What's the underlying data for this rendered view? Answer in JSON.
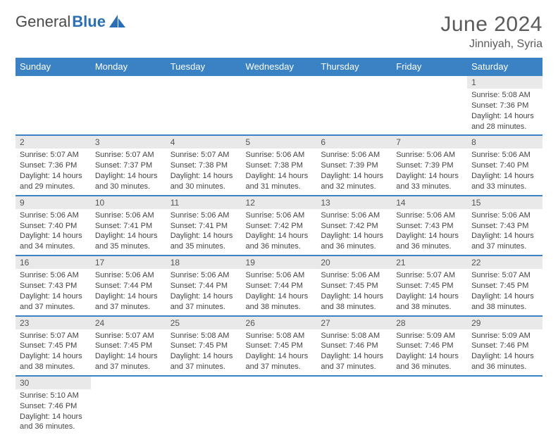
{
  "logo": {
    "text1": "General",
    "text2": "Blue"
  },
  "title": "June 2024",
  "location": "Jinniyah, Syria",
  "colors": {
    "header_bg": "#3b82c4",
    "header_text": "#ffffff",
    "daynum_bg": "#e9e9e9",
    "grid_line": "#3b82c4",
    "body_text": "#444444",
    "title_text": "#5a5a5a"
  },
  "weekdays": [
    "Sunday",
    "Monday",
    "Tuesday",
    "Wednesday",
    "Thursday",
    "Friday",
    "Saturday"
  ],
  "weeks": [
    [
      null,
      null,
      null,
      null,
      null,
      null,
      {
        "d": "1",
        "sr": "Sunrise: 5:08 AM",
        "ss": "Sunset: 7:36 PM",
        "dl": "Daylight: 14 hours and 28 minutes."
      }
    ],
    [
      {
        "d": "2",
        "sr": "Sunrise: 5:07 AM",
        "ss": "Sunset: 7:36 PM",
        "dl": "Daylight: 14 hours and 29 minutes."
      },
      {
        "d": "3",
        "sr": "Sunrise: 5:07 AM",
        "ss": "Sunset: 7:37 PM",
        "dl": "Daylight: 14 hours and 30 minutes."
      },
      {
        "d": "4",
        "sr": "Sunrise: 5:07 AM",
        "ss": "Sunset: 7:38 PM",
        "dl": "Daylight: 14 hours and 30 minutes."
      },
      {
        "d": "5",
        "sr": "Sunrise: 5:06 AM",
        "ss": "Sunset: 7:38 PM",
        "dl": "Daylight: 14 hours and 31 minutes."
      },
      {
        "d": "6",
        "sr": "Sunrise: 5:06 AM",
        "ss": "Sunset: 7:39 PM",
        "dl": "Daylight: 14 hours and 32 minutes."
      },
      {
        "d": "7",
        "sr": "Sunrise: 5:06 AM",
        "ss": "Sunset: 7:39 PM",
        "dl": "Daylight: 14 hours and 33 minutes."
      },
      {
        "d": "8",
        "sr": "Sunrise: 5:06 AM",
        "ss": "Sunset: 7:40 PM",
        "dl": "Daylight: 14 hours and 33 minutes."
      }
    ],
    [
      {
        "d": "9",
        "sr": "Sunrise: 5:06 AM",
        "ss": "Sunset: 7:40 PM",
        "dl": "Daylight: 14 hours and 34 minutes."
      },
      {
        "d": "10",
        "sr": "Sunrise: 5:06 AM",
        "ss": "Sunset: 7:41 PM",
        "dl": "Daylight: 14 hours and 35 minutes."
      },
      {
        "d": "11",
        "sr": "Sunrise: 5:06 AM",
        "ss": "Sunset: 7:41 PM",
        "dl": "Daylight: 14 hours and 35 minutes."
      },
      {
        "d": "12",
        "sr": "Sunrise: 5:06 AM",
        "ss": "Sunset: 7:42 PM",
        "dl": "Daylight: 14 hours and 36 minutes."
      },
      {
        "d": "13",
        "sr": "Sunrise: 5:06 AM",
        "ss": "Sunset: 7:42 PM",
        "dl": "Daylight: 14 hours and 36 minutes."
      },
      {
        "d": "14",
        "sr": "Sunrise: 5:06 AM",
        "ss": "Sunset: 7:43 PM",
        "dl": "Daylight: 14 hours and 36 minutes."
      },
      {
        "d": "15",
        "sr": "Sunrise: 5:06 AM",
        "ss": "Sunset: 7:43 PM",
        "dl": "Daylight: 14 hours and 37 minutes."
      }
    ],
    [
      {
        "d": "16",
        "sr": "Sunrise: 5:06 AM",
        "ss": "Sunset: 7:43 PM",
        "dl": "Daylight: 14 hours and 37 minutes."
      },
      {
        "d": "17",
        "sr": "Sunrise: 5:06 AM",
        "ss": "Sunset: 7:44 PM",
        "dl": "Daylight: 14 hours and 37 minutes."
      },
      {
        "d": "18",
        "sr": "Sunrise: 5:06 AM",
        "ss": "Sunset: 7:44 PM",
        "dl": "Daylight: 14 hours and 37 minutes."
      },
      {
        "d": "19",
        "sr": "Sunrise: 5:06 AM",
        "ss": "Sunset: 7:44 PM",
        "dl": "Daylight: 14 hours and 38 minutes."
      },
      {
        "d": "20",
        "sr": "Sunrise: 5:06 AM",
        "ss": "Sunset: 7:45 PM",
        "dl": "Daylight: 14 hours and 38 minutes."
      },
      {
        "d": "21",
        "sr": "Sunrise: 5:07 AM",
        "ss": "Sunset: 7:45 PM",
        "dl": "Daylight: 14 hours and 38 minutes."
      },
      {
        "d": "22",
        "sr": "Sunrise: 5:07 AM",
        "ss": "Sunset: 7:45 PM",
        "dl": "Daylight: 14 hours and 38 minutes."
      }
    ],
    [
      {
        "d": "23",
        "sr": "Sunrise: 5:07 AM",
        "ss": "Sunset: 7:45 PM",
        "dl": "Daylight: 14 hours and 38 minutes."
      },
      {
        "d": "24",
        "sr": "Sunrise: 5:07 AM",
        "ss": "Sunset: 7:45 PM",
        "dl": "Daylight: 14 hours and 37 minutes."
      },
      {
        "d": "25",
        "sr": "Sunrise: 5:08 AM",
        "ss": "Sunset: 7:45 PM",
        "dl": "Daylight: 14 hours and 37 minutes."
      },
      {
        "d": "26",
        "sr": "Sunrise: 5:08 AM",
        "ss": "Sunset: 7:45 PM",
        "dl": "Daylight: 14 hours and 37 minutes."
      },
      {
        "d": "27",
        "sr": "Sunrise: 5:08 AM",
        "ss": "Sunset: 7:46 PM",
        "dl": "Daylight: 14 hours and 37 minutes."
      },
      {
        "d": "28",
        "sr": "Sunrise: 5:09 AM",
        "ss": "Sunset: 7:46 PM",
        "dl": "Daylight: 14 hours and 36 minutes."
      },
      {
        "d": "29",
        "sr": "Sunrise: 5:09 AM",
        "ss": "Sunset: 7:46 PM",
        "dl": "Daylight: 14 hours and 36 minutes."
      }
    ],
    [
      {
        "d": "30",
        "sr": "Sunrise: 5:10 AM",
        "ss": "Sunset: 7:46 PM",
        "dl": "Daylight: 14 hours and 36 minutes."
      },
      null,
      null,
      null,
      null,
      null,
      null
    ]
  ]
}
